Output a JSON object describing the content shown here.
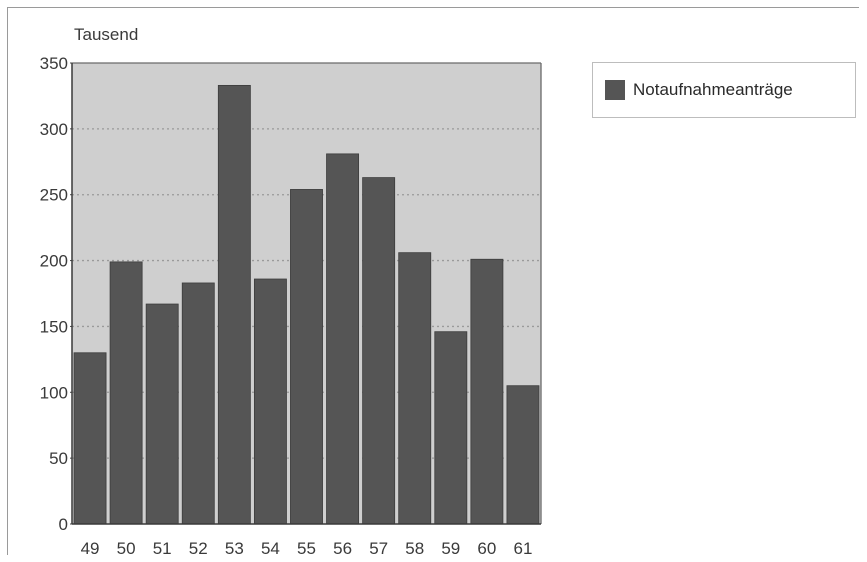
{
  "chart_data": {
    "type": "bar",
    "unit_label": "Tausend",
    "categories": [
      "49",
      "50",
      "51",
      "52",
      "53",
      "54",
      "55",
      "56",
      "57",
      "58",
      "59",
      "60",
      "61"
    ],
    "series": [
      {
        "name": "Notaufnahmeanträge",
        "values": [
          130,
          199,
          167,
          183,
          333,
          186,
          254,
          281,
          263,
          206,
          146,
          201,
          105
        ],
        "color": "#555555"
      }
    ],
    "ylim": [
      0,
      350
    ],
    "yticks": [
      0,
      50,
      100,
      150,
      200,
      250,
      300,
      350
    ],
    "grid": true,
    "legend_position": "top-right",
    "plot_background": "#cfcfcf",
    "grid_color": "#9a9a9a"
  },
  "legend": {
    "label": "Notaufnahmeanträge"
  }
}
